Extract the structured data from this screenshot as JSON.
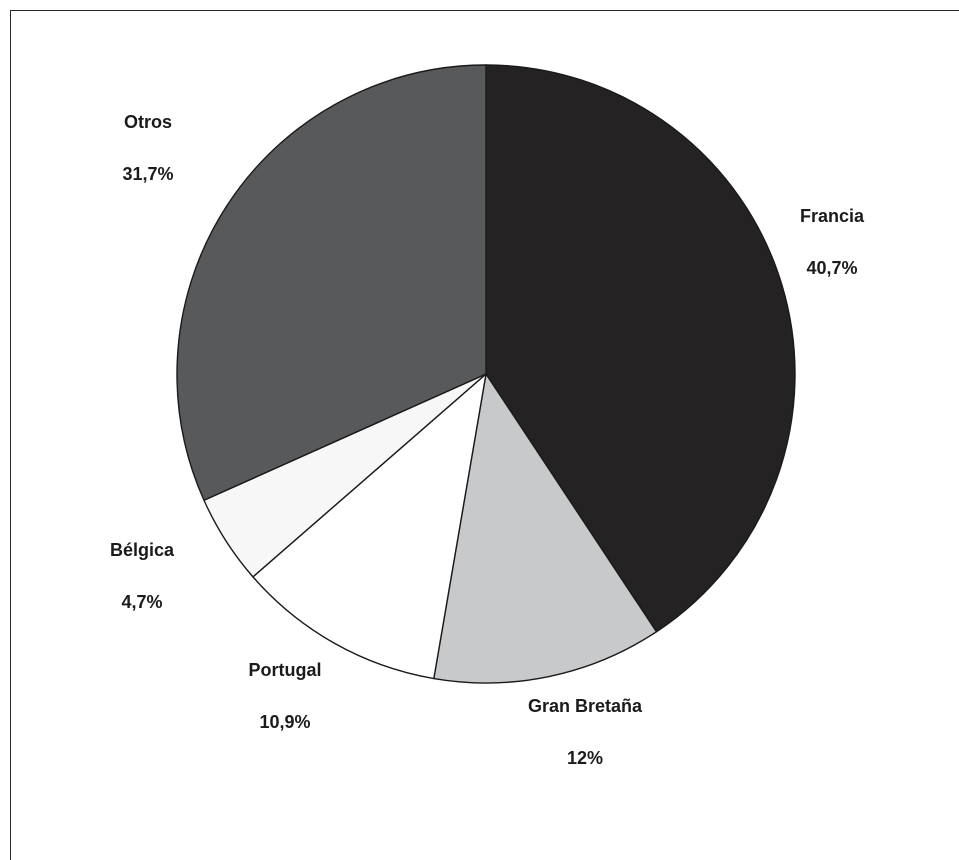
{
  "chart_data": {
    "type": "pie",
    "title": "",
    "slices": [
      {
        "label": "Francia",
        "value": 40.7,
        "value_label": "40,7%",
        "color": "#242223"
      },
      {
        "label": "Gran Bretaña",
        "value": 12.0,
        "value_label": "12%",
        "color": "#c8c9cb"
      },
      {
        "label": "Portugal",
        "value": 10.9,
        "value_label": "10,9%",
        "color": "#ffffff"
      },
      {
        "label": "Bélgica",
        "value": 4.7,
        "value_label": "4,7%",
        "color": "#f7f7f7"
      },
      {
        "label": "Otros",
        "value": 31.7,
        "value_label": "31,7%",
        "color": "#58595b"
      }
    ],
    "start_angle": "12 o'clock",
    "direction": "clockwise",
    "legend": "none"
  }
}
